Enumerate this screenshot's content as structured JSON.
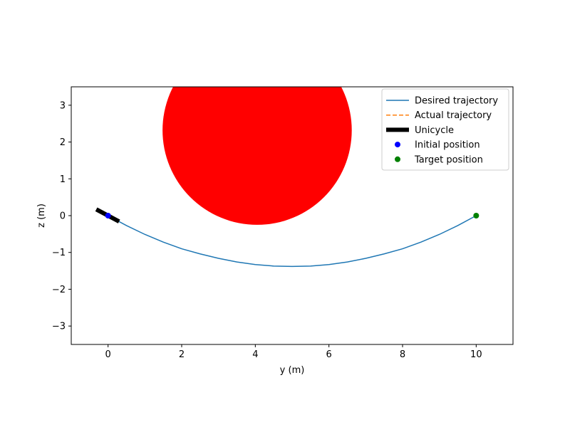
{
  "chart_data": {
    "type": "line",
    "title": "",
    "xlabel": "y (m)",
    "ylabel": "z (m)",
    "xlim": [
      -1,
      11
    ],
    "ylim": [
      -3.5,
      3.5
    ],
    "xticks": [
      0,
      2,
      4,
      6,
      8,
      10
    ],
    "yticks": [
      -3,
      -2,
      -1,
      0,
      1,
      2,
      3
    ],
    "grid": false,
    "legend_position": "top-right",
    "aspect": "equal",
    "series": [
      {
        "name": "Desired trajectory",
        "kind": "line",
        "color": "#1f77b4",
        "x": [
          0,
          0.5,
          1,
          1.5,
          2,
          2.5,
          3,
          3.5,
          4,
          4.5,
          5,
          5.5,
          6,
          6.5,
          7,
          7.5,
          8,
          8.5,
          9,
          9.5,
          10
        ],
        "y": [
          0,
          -0.27,
          -0.51,
          -0.72,
          -0.9,
          -1.04,
          -1.16,
          -1.26,
          -1.33,
          -1.37,
          -1.38,
          -1.37,
          -1.33,
          -1.26,
          -1.16,
          -1.04,
          -0.9,
          -0.72,
          -0.51,
          -0.27,
          0
        ]
      },
      {
        "name": "Actual trajectory",
        "kind": "dashed-line",
        "color": "#ff7f0e",
        "x": [
          0
        ],
        "y": [
          0
        ]
      },
      {
        "name": "Unicycle",
        "kind": "thick-segment",
        "color": "#000000",
        "x": [
          -0.32,
          0.3
        ],
        "y": [
          0.17,
          -0.16
        ]
      },
      {
        "name": "Initial position",
        "kind": "marker",
        "color": "#0000ff",
        "x": [
          0
        ],
        "y": [
          0
        ]
      },
      {
        "name": "Target position",
        "kind": "marker",
        "color": "#008000",
        "x": [
          10
        ],
        "y": [
          0
        ]
      }
    ],
    "obstacle": {
      "shape": "circle",
      "center": [
        4.05,
        2.32
      ],
      "radius": 2.57,
      "color": "#ff0000"
    },
    "legend": [
      "Desired trajectory",
      "Actual trajectory",
      "Unicycle",
      "Initial position",
      "Target position"
    ]
  }
}
